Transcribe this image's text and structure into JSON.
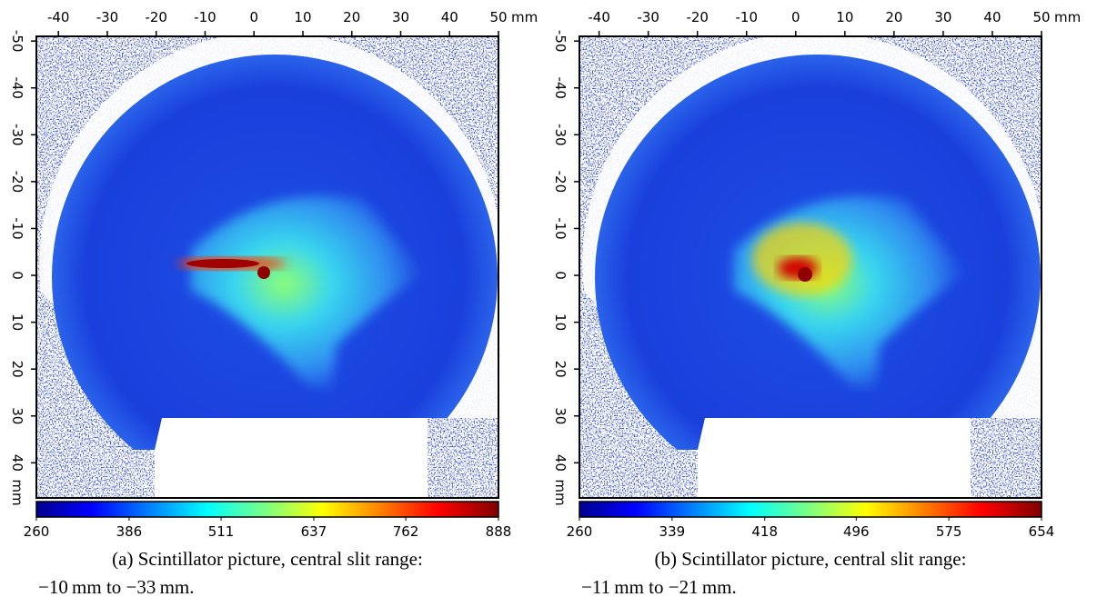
{
  "panels": [
    {
      "xlim": [
        -44.5,
        50
      ],
      "xticks": [
        -40,
        -30,
        -20,
        -10,
        0,
        10,
        20,
        30,
        40,
        50
      ],
      "x_unit": "mm",
      "ylim": [
        -51,
        47.5
      ],
      "yticks": [
        -50,
        -40,
        -30,
        -20,
        -10,
        0,
        10,
        20,
        30,
        40
      ],
      "y_unit": "mm",
      "colorbar": {
        "lim": [
          260,
          888
        ],
        "ticks": [
          260,
          386,
          511,
          637,
          762,
          888
        ]
      },
      "caption": [
        "(a) Scintillator picture, central slit range:",
        "−10 mm to −33 mm."
      ]
    },
    {
      "xlim": [
        -44,
        50
      ],
      "xticks": [
        -40,
        -30,
        -20,
        -10,
        0,
        10,
        20,
        30,
        40,
        50
      ],
      "x_unit": "mm",
      "ylim": [
        -51,
        47.5
      ],
      "yticks": [
        -50,
        -40,
        -30,
        -20,
        -10,
        0,
        10,
        20,
        30,
        40
      ],
      "y_unit": "mm",
      "colorbar": {
        "lim": [
          260,
          654
        ],
        "ticks": [
          260,
          339,
          418,
          496,
          575,
          654
        ]
      },
      "caption": [
        "(b) Scintillator picture, central slit range:",
        "−11 mm to −21 mm."
      ]
    }
  ]
}
